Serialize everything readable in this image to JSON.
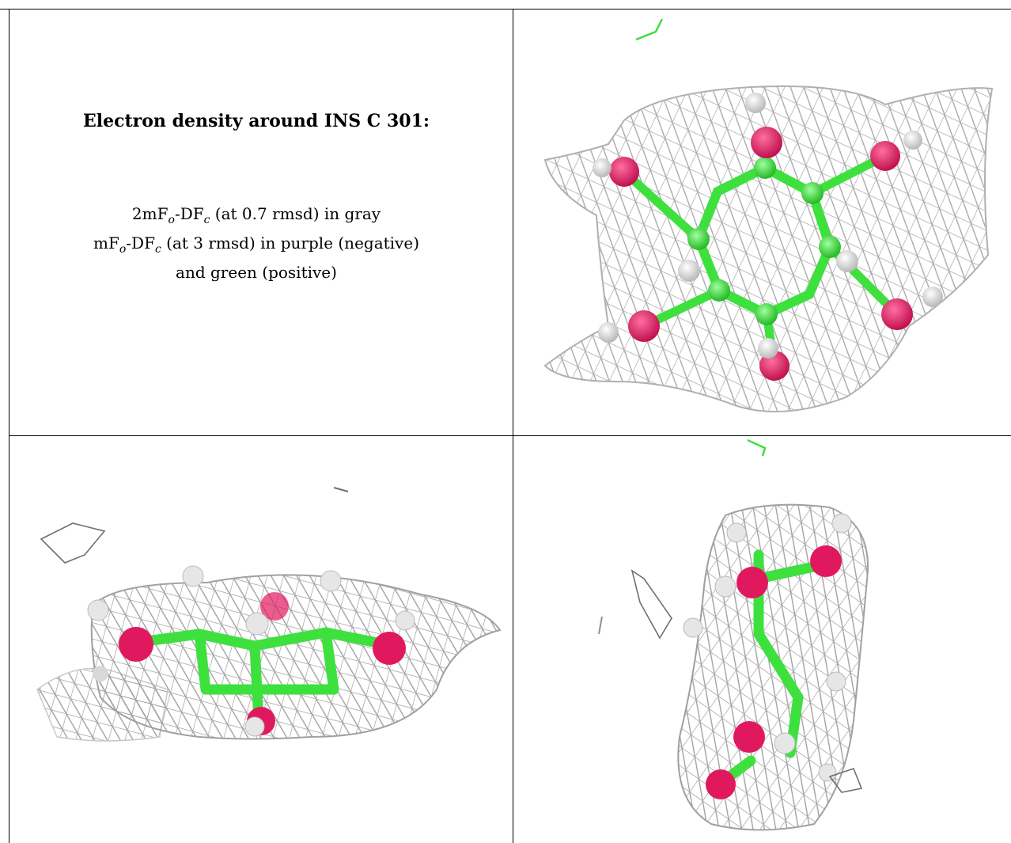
{
  "caption": {
    "title": "Electron density around INS C 301:",
    "line1_prefix": "2mF",
    "line1_sub_o": "o",
    "line1_mid": "-DF",
    "line1_sub_c": "c",
    "line1_suffix": " (at 0.7 rmsd) in gray",
    "line2_prefix": "mF",
    "line2_sub_o": "o",
    "line2_mid": "-DF",
    "line2_sub_c": "c",
    "line2_suffix": " (at 3 rmsd) in purple (negative)",
    "line3": "and green (positive)"
  },
  "colors": {
    "mesh": "#a0a0a0",
    "carbon_bond": "#3ee03e",
    "oxygen": "#e0195f",
    "hydrogen": "#e8e8e8",
    "positive_density": "#3ee03e",
    "negative_density": "#8a2be2"
  },
  "panels": [
    {
      "name": "density-view-top",
      "orientation": "face-on"
    },
    {
      "name": "density-view-side",
      "orientation": "edge-on"
    },
    {
      "name": "density-view-end",
      "orientation": "end-on"
    }
  ]
}
